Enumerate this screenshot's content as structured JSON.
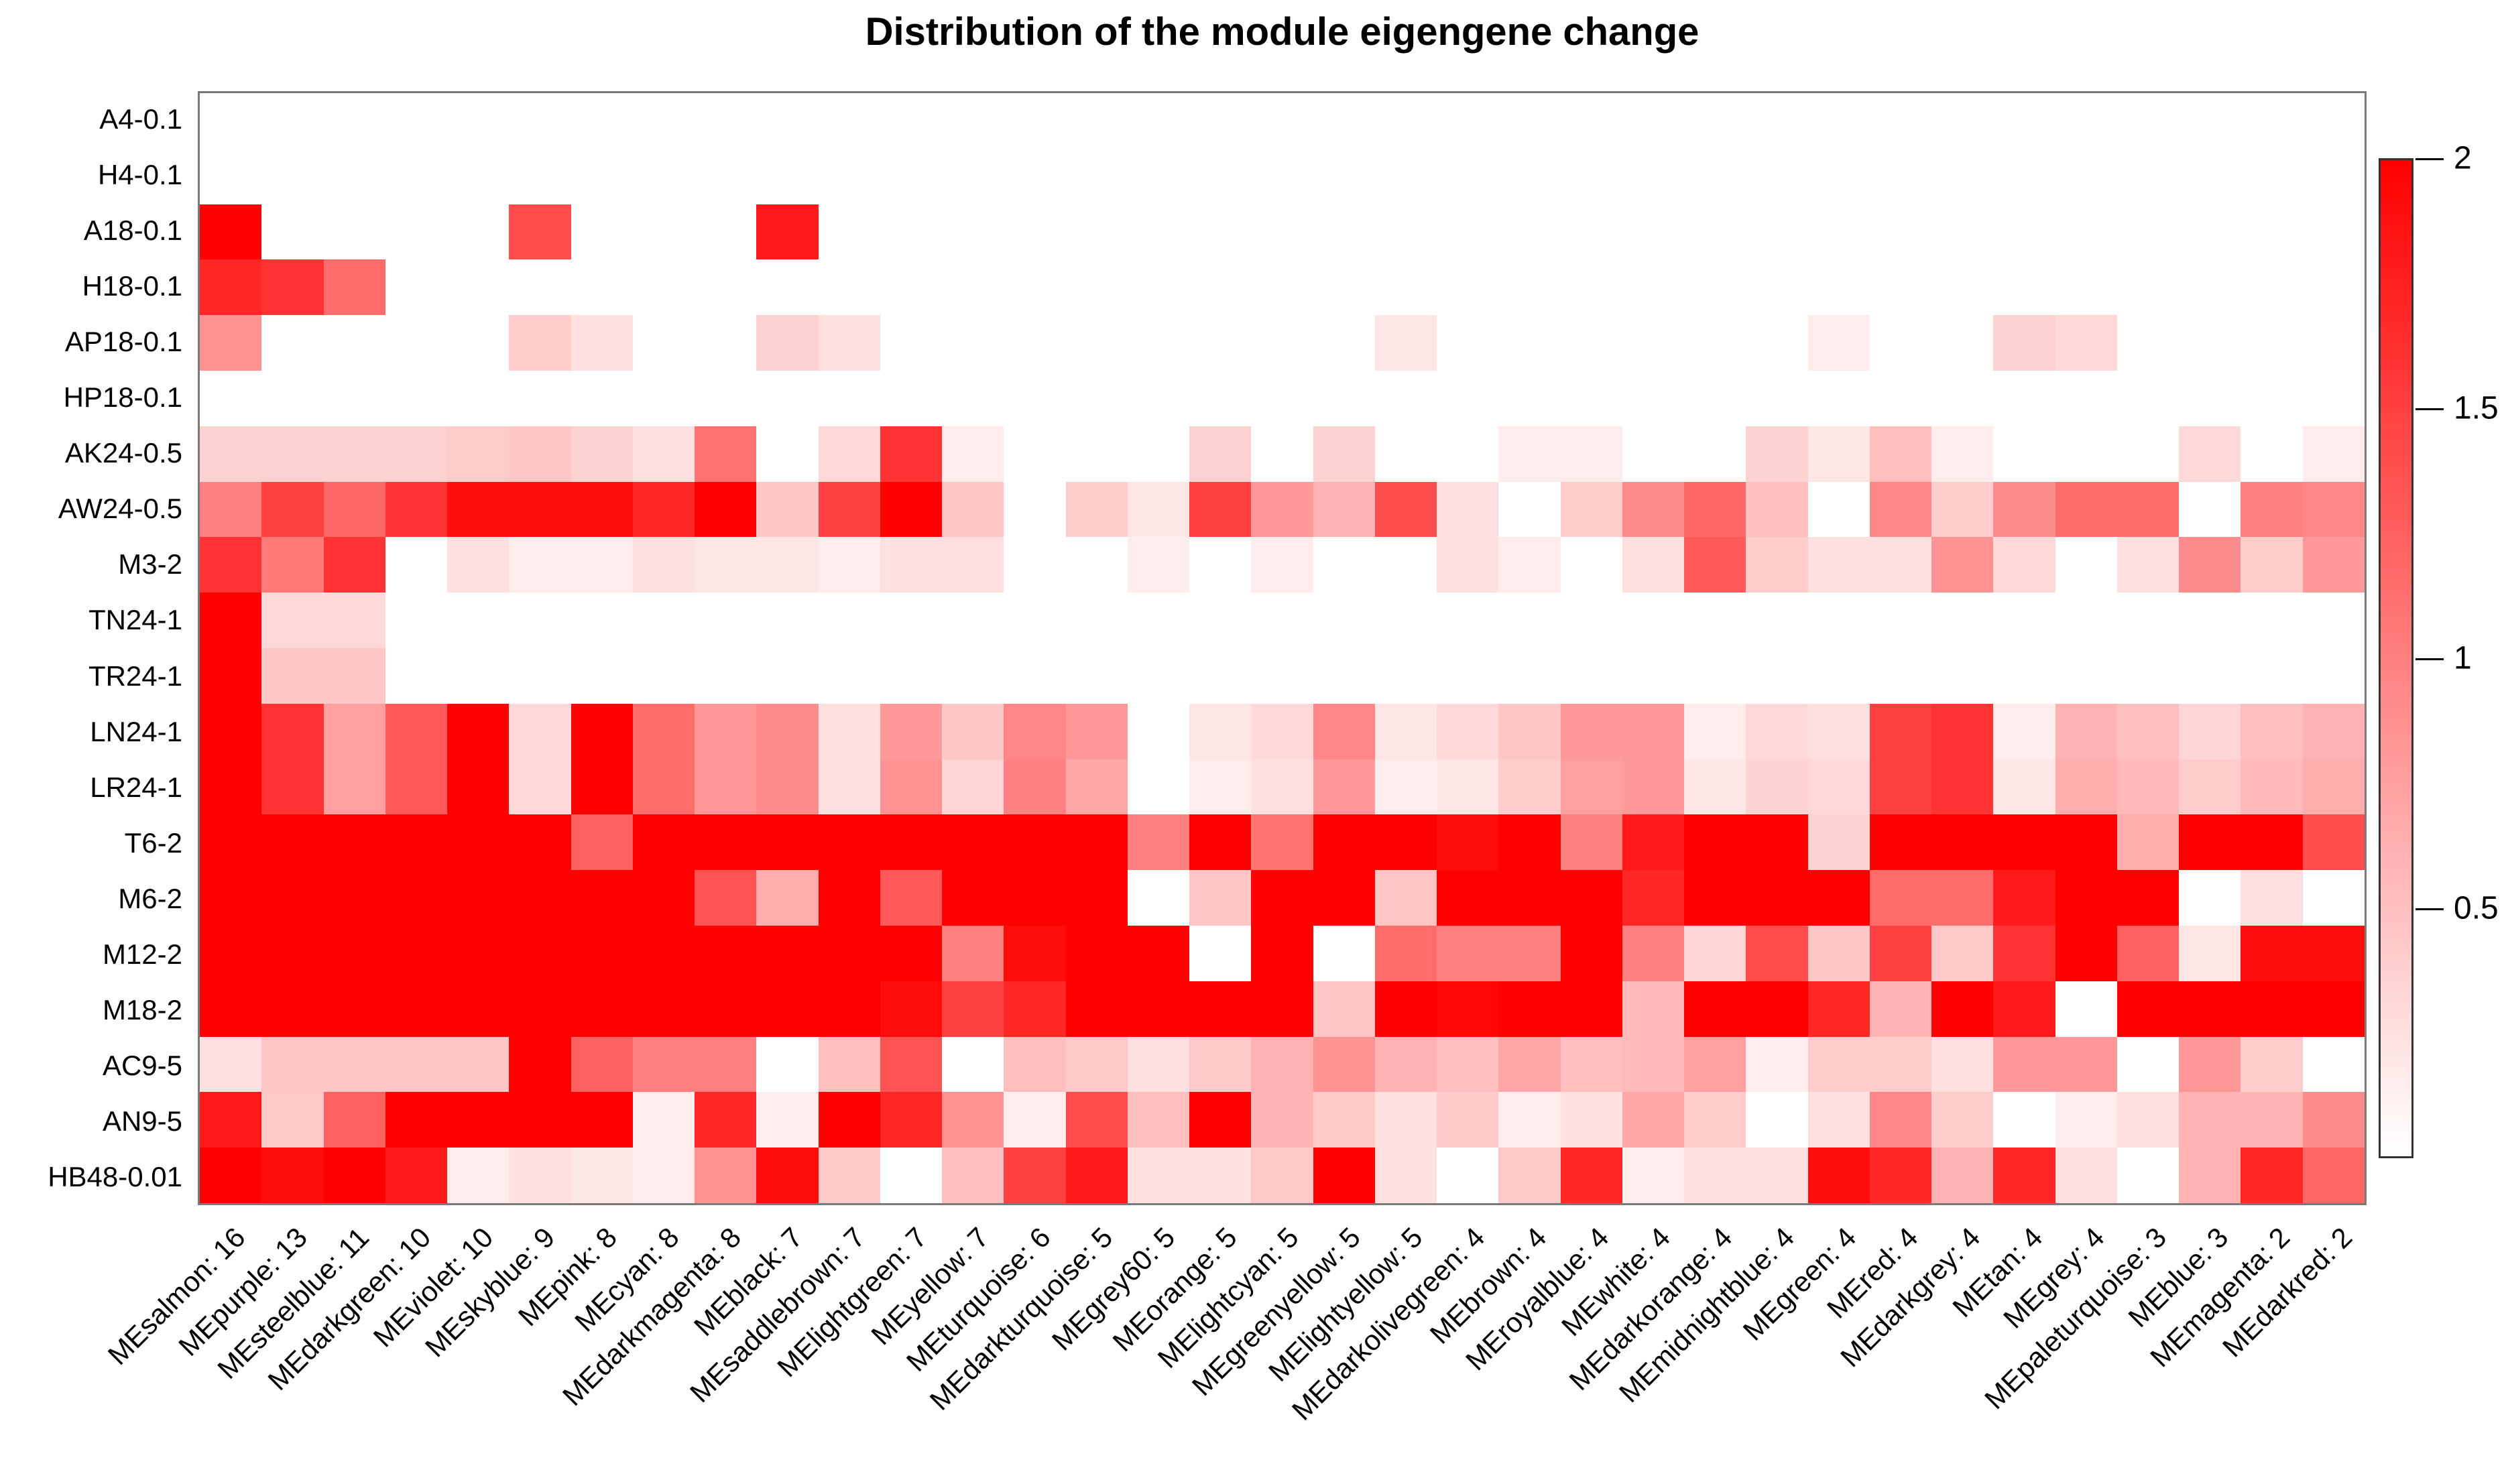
{
  "title": "Distribution of the module eigengene change",
  "chart_data": {
    "type": "heatmap",
    "title": "Distribution of the module eigengene change",
    "legend_position": "right",
    "rows": [
      "A4-0.1",
      "H4-0.1",
      "A18-0.1",
      "H18-0.1",
      "AP18-0.1",
      "HP18-0.1",
      "AK24-0.5",
      "AW24-0.5",
      "M3-2",
      "TN24-1",
      "TR24-1",
      "LN24-1",
      "LR24-1",
      "T6-2",
      "M6-2",
      "M12-2",
      "M18-2",
      "AC9-5",
      "AN9-5",
      "HB48-0.01"
    ],
    "columns": [
      "MEsalmon: 16",
      "MEpurple: 13",
      "MEsteelblue: 11",
      "MEdarkgreen: 10",
      "MEviolet: 10",
      "MEskyblue: 9",
      "MEpink: 8",
      "MEcyan: 8",
      "MEdarkmagenta: 8",
      "MEblack: 7",
      "MEsaddlebrown: 7",
      "MElightgreen: 7",
      "MEyellow: 7",
      "MEturquoise: 6",
      "MEdarkturquoise: 5",
      "MEgrey60: 5",
      "MEorange: 5",
      "MElightcyan: 5",
      "MEgreenyellow: 5",
      "MElightyellow: 5",
      "MEdarkolivegreen: 4",
      "MEbrown: 4",
      "MEroyalblue: 4",
      "MEwhite: 4",
      "MEdarkorange: 4",
      "MEmidnightblue: 4",
      "MEgreen: 4",
      "MEred: 4",
      "MEdarkgrey: 4",
      "MEtan: 4",
      "MEgrey: 4",
      "MEpaleturquoise: 3",
      "MEblue: 3",
      "MEmagenta: 2",
      "MEdarkred: 2"
    ],
    "values": [
      [
        0,
        0,
        0,
        0,
        0,
        0,
        0,
        0,
        0,
        0,
        0,
        0,
        0,
        0,
        0,
        0,
        0,
        0,
        0,
        0,
        0,
        0,
        0,
        0,
        0,
        0,
        0,
        0,
        0,
        0,
        0,
        0,
        0,
        0,
        0
      ],
      [
        0,
        0,
        0,
        0,
        0,
        0,
        0,
        0,
        0,
        0,
        0,
        0,
        0,
        0,
        0,
        0,
        0,
        0,
        0,
        0,
        0,
        0,
        0,
        0,
        0,
        0,
        0,
        0,
        0,
        0,
        0,
        0,
        0,
        0,
        0
      ],
      [
        2,
        0,
        0,
        0,
        0,
        1.4,
        0,
        0,
        0,
        1.8,
        0,
        0,
        0,
        0,
        0,
        0,
        0,
        0,
        0,
        0,
        0,
        0,
        0,
        0,
        0,
        0,
        0,
        0,
        0,
        0,
        0,
        0,
        0,
        0,
        0
      ],
      [
        1.7,
        1.6,
        1.15,
        0,
        0,
        0,
        0,
        0,
        0,
        0,
        0,
        0,
        0,
        0,
        0,
        0,
        0,
        0,
        0,
        0,
        0,
        0,
        0,
        0,
        0,
        0,
        0,
        0,
        0,
        0,
        0,
        0,
        0,
        0,
        0
      ],
      [
        0.85,
        0,
        0,
        0,
        0,
        0.4,
        0.25,
        0,
        0,
        0.35,
        0.25,
        0,
        0,
        0,
        0,
        0,
        0,
        0,
        0,
        0.2,
        0,
        0,
        0,
        0,
        0,
        0,
        0.15,
        0,
        0,
        0.35,
        0.3,
        0,
        0,
        0,
        0
      ],
      [
        0,
        0,
        0,
        0,
        0,
        0,
        0,
        0,
        0,
        0,
        0,
        0,
        0,
        0,
        0,
        0,
        0,
        0,
        0,
        0,
        0,
        0,
        0,
        0,
        0,
        0,
        0,
        0,
        0,
        0,
        0,
        0,
        0,
        0,
        0
      ],
      [
        0.35,
        0.35,
        0.35,
        0.35,
        0.4,
        0.45,
        0.35,
        0.25,
        1.1,
        0,
        0.3,
        1.6,
        0.15,
        0,
        0,
        0,
        0.35,
        0,
        0.35,
        0,
        0,
        0.15,
        0.15,
        0,
        0,
        0.35,
        0.2,
        0.5,
        0.15,
        0,
        0,
        0,
        0.3,
        0,
        0.15
      ],
      [
        1,
        1.5,
        1.2,
        1.6,
        1.9,
        1.9,
        1.9,
        1.7,
        2,
        0.45,
        1.5,
        2,
        0.45,
        0,
        0.4,
        0.2,
        1.5,
        0.8,
        0.6,
        1.4,
        0.25,
        0,
        0.4,
        0.9,
        1.2,
        0.5,
        0,
        0.95,
        0.4,
        0.9,
        1.15,
        1.15,
        0,
        1,
        0.95
      ],
      [
        1.6,
        1.05,
        1.6,
        0,
        0.25,
        0.15,
        0.15,
        0.25,
        0.2,
        0.2,
        0.15,
        0.25,
        0.25,
        0,
        0,
        0.15,
        0,
        0.15,
        0,
        0,
        0.25,
        0.15,
        0,
        0.25,
        1.3,
        0.4,
        0.25,
        0.25,
        0.85,
        0.3,
        0,
        0.25,
        0.9,
        0.4,
        0.8
      ],
      [
        2,
        0.3,
        0.3,
        0,
        0,
        0,
        0,
        0,
        0,
        0,
        0,
        0,
        0,
        0,
        0,
        0,
        0,
        0,
        0,
        0,
        0,
        0,
        0,
        0,
        0,
        0,
        0,
        0,
        0,
        0,
        0,
        0,
        0,
        0,
        0
      ],
      [
        2,
        0.45,
        0.45,
        0,
        0,
        0,
        0,
        0,
        0,
        0,
        0,
        0,
        0,
        0,
        0,
        0,
        0,
        0,
        0,
        0,
        0,
        0,
        0,
        0,
        0,
        0,
        0,
        0,
        0,
        0,
        0,
        0,
        0,
        0,
        0
      ],
      [
        2,
        1.6,
        0.75,
        1.3,
        2,
        0.3,
        2,
        1.15,
        0.8,
        0.9,
        0.25,
        0.8,
        0.45,
        0.95,
        0.8,
        0,
        0.2,
        0.3,
        0.95,
        0.2,
        0.3,
        0.45,
        0.8,
        0.8,
        0.15,
        0.3,
        0.25,
        1.5,
        1.6,
        0.15,
        0.6,
        0.5,
        0.33,
        0.5,
        0.6
      ],
      [
        2,
        1.6,
        0.75,
        1.3,
        2,
        0.3,
        2,
        1.15,
        0.8,
        0.9,
        0.25,
        0.85,
        0.33,
        1,
        0.7,
        0,
        0.15,
        0.25,
        0.8,
        0.15,
        0.2,
        0.4,
        0.75,
        0.8,
        0.2,
        0.35,
        0.3,
        1.5,
        1.6,
        0.2,
        0.65,
        0.55,
        0.4,
        0.55,
        0.65
      ],
      [
        2,
        2,
        2,
        2,
        2,
        2,
        1.25,
        2,
        2,
        2,
        2,
        2,
        2,
        2,
        2,
        1,
        2,
        1.1,
        2,
        2,
        1.9,
        2,
        1,
        1.8,
        2,
        2,
        0.35,
        2,
        2,
        2,
        2,
        0.65,
        2,
        2,
        1.4
      ],
      [
        2,
        2,
        2,
        2,
        2,
        2,
        2,
        2,
        1.35,
        0.65,
        2,
        1.3,
        2,
        2,
        2,
        0,
        0.45,
        2,
        2,
        0.45,
        2,
        2,
        2,
        1.7,
        2,
        2,
        2,
        1.15,
        1.15,
        1.8,
        2,
        2,
        0,
        0.25,
        0
      ],
      [
        2,
        2,
        2,
        2,
        2,
        2,
        2,
        2,
        2,
        2,
        2,
        2,
        1,
        1.9,
        2,
        2,
        0,
        2,
        0,
        1.15,
        1,
        1,
        2,
        1,
        0.33,
        1.4,
        0.45,
        1.5,
        0.42,
        1.6,
        2,
        1.25,
        0.2,
        1.9,
        1.9
      ],
      [
        2,
        2,
        2,
        2,
        2,
        2,
        2,
        2,
        2,
        2,
        2,
        1.9,
        1.5,
        1.7,
        2,
        2,
        2,
        2,
        0.45,
        2,
        1.95,
        2,
        2,
        0.55,
        2,
        2,
        1.7,
        0.6,
        2,
        1.8,
        0,
        2,
        2,
        2,
        2
      ],
      [
        0.25,
        0.45,
        0.45,
        0.45,
        0.45,
        2,
        1.25,
        1,
        1,
        0,
        0.5,
        1.35,
        0,
        0.5,
        0.42,
        0.25,
        0.42,
        0.6,
        0.85,
        0.6,
        0.5,
        0.7,
        0.5,
        0.55,
        0.75,
        0.15,
        0.4,
        0.4,
        0.25,
        0.8,
        0.8,
        0,
        0.8,
        0.4,
        0
      ],
      [
        1.8,
        0.42,
        1.25,
        2,
        2,
        2,
        2,
        0.15,
        1.7,
        0.15,
        2,
        1.7,
        0.85,
        0.15,
        1.4,
        0.5,
        2,
        0.6,
        0.42,
        0.25,
        0.42,
        0.15,
        0.25,
        0.7,
        0.4,
        0,
        0.25,
        0.95,
        0.4,
        0,
        0.15,
        0.25,
        0.6,
        0.6,
        0.9
      ],
      [
        2,
        1.9,
        2,
        1.8,
        0.15,
        0.25,
        0.2,
        0.15,
        0.85,
        1.9,
        0.42,
        0,
        0.5,
        1.5,
        1.8,
        0.25,
        0.25,
        0.42,
        2,
        0.25,
        0,
        0.42,
        1.7,
        0.15,
        0.25,
        0.25,
        1.9,
        1.7,
        0.6,
        1.7,
        0.25,
        0,
        0.6,
        1.7,
        1.2
      ]
    ],
    "scale": {
      "min": 0,
      "max": 2,
      "ticks": [
        "0.5",
        "1",
        "1.5",
        "2"
      ],
      "tick_values": [
        0.5,
        1,
        1.5,
        2
      ],
      "min_color": "#FFFFFF",
      "max_color": "#FF0000"
    }
  }
}
